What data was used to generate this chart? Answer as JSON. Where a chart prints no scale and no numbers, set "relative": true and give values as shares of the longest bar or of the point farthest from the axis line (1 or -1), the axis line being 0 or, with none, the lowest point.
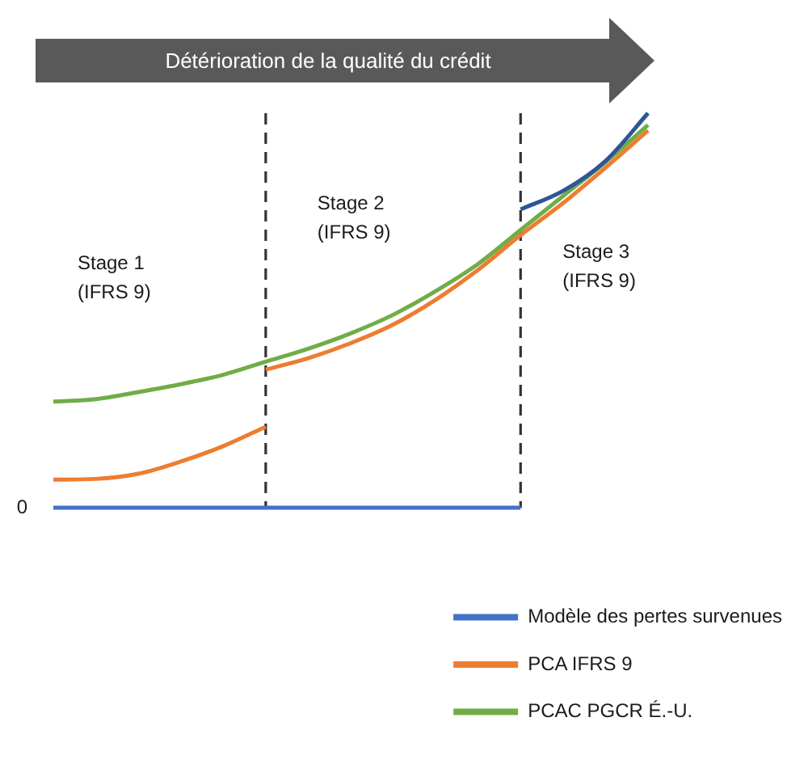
{
  "chart_data": {
    "type": "line",
    "xlabel": "Détérioration de la qualité du crédit",
    "relative": true,
    "marker": "none",
    "legend": "bottom right",
    "categories": [
      null,
      null,
      null,
      null,
      null,
      null,
      null,
      null,
      null,
      null,
      null,
      null,
      null,
      null,
      null
    ],
    "series": [
      {
        "name": "Modèle des pertes survenues",
        "color": "#4472c4",
        "values": [
          0,
          0,
          0,
          0,
          0,
          0,
          0,
          0,
          0,
          0,
          0,
          0,
          null,
          null,
          null
        ]
      },
      {
        "color": "#2f5597",
        "values": [
          null,
          null,
          null,
          null,
          null,
          null,
          null,
          null,
          null,
          null,
          null,
          0.756,
          0.803,
          0.879,
          1
        ]
      },
      {
        "name": "PCA IFRS 9",
        "color": "#ed7d31",
        "values": [
          0.071,
          0.073,
          0.086,
          0.117,
          0.156,
          0.205,
          null,
          null,
          null,
          null,
          null,
          null,
          null,
          null,
          null
        ]
      },
      {
        "color": "#ed7d31",
        "values": [
          null,
          null,
          null,
          null,
          null,
          0.35,
          0.379,
          0.417,
          0.464,
          0.527,
          0.603,
          0.691,
          0.772,
          0.862,
          0.956
        ]
      },
      {
        "name": "PCAC PGCR É.-U.",
        "color": "#70ad47",
        "values": [
          0.269,
          0.275,
          0.293,
          0.313,
          0.337,
          0.37,
          0.403,
          0.442,
          0.489,
          0.549,
          0.618,
          0.704,
          0.79,
          0.876,
          0.97
        ]
      }
    ],
    "annotations": [
      "Stage 1\n(IFRS 9)",
      "Stage 2\n(IFRS 9)",
      "Stage 3\n(IFRS 9)",
      "0"
    ]
  }
}
